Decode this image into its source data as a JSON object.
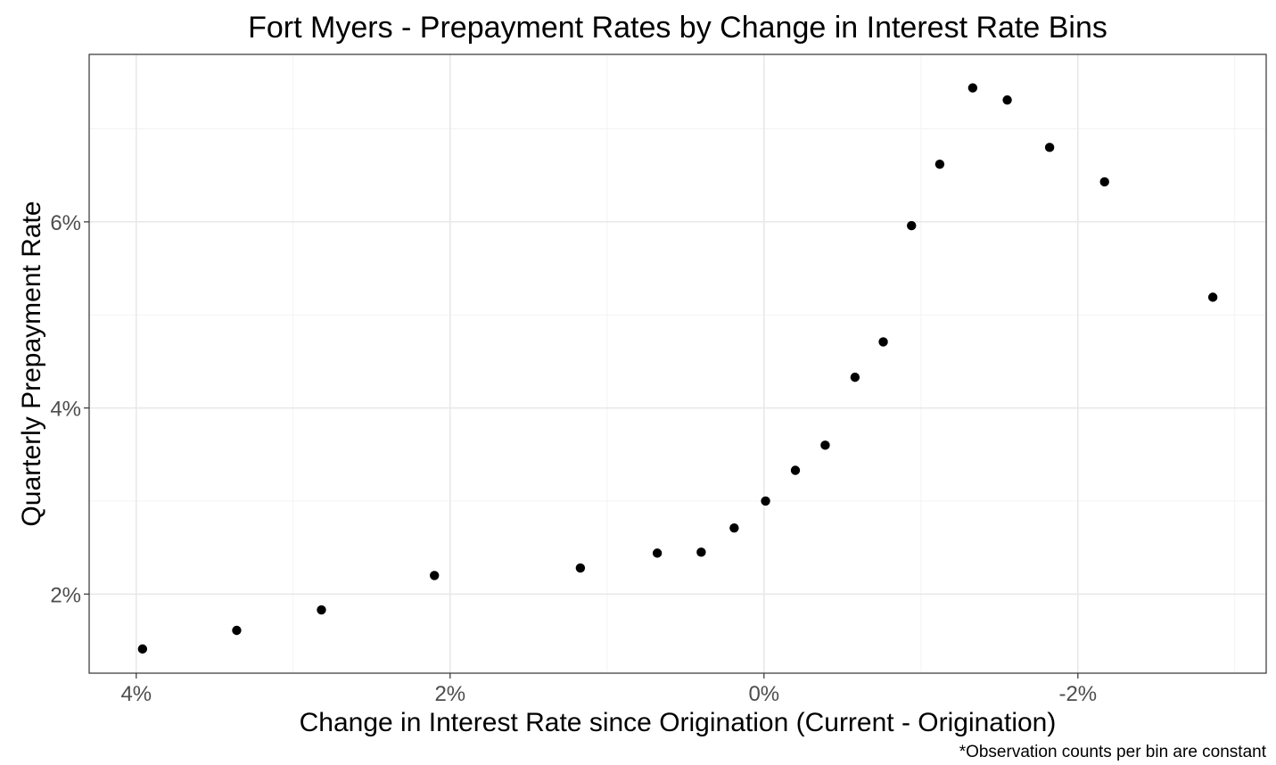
{
  "chart_data": {
    "type": "scatter",
    "title": "Fort Myers - Prepayment Rates by Change in Interest Rate Bins",
    "xlabel": "Change in Interest Rate since Origination (Current - Origination)",
    "ylabel": "Quarterly Prepayment Rate",
    "caption": "*Observation counts per bin are constant",
    "x_reversed": true,
    "xlim": [
      4.3,
      -3.2
    ],
    "ylim": [
      1.15,
      7.8
    ],
    "x_ticks": [
      4,
      2,
      0,
      -2
    ],
    "x_tick_labels": [
      "4%",
      "2%",
      "0%",
      "-2%"
    ],
    "y_ticks": [
      2,
      4,
      6
    ],
    "y_tick_labels": [
      "2%",
      "4%",
      "6%"
    ],
    "grid": true,
    "points": [
      {
        "x": 3.96,
        "y": 1.41
      },
      {
        "x": 3.36,
        "y": 1.61
      },
      {
        "x": 2.82,
        "y": 1.83
      },
      {
        "x": 2.1,
        "y": 2.2
      },
      {
        "x": 1.17,
        "y": 2.28
      },
      {
        "x": 0.68,
        "y": 2.44
      },
      {
        "x": 0.4,
        "y": 2.45
      },
      {
        "x": 0.19,
        "y": 2.71
      },
      {
        "x": -0.01,
        "y": 3.0
      },
      {
        "x": -0.2,
        "y": 3.33
      },
      {
        "x": -0.39,
        "y": 3.6
      },
      {
        "x": -0.58,
        "y": 4.33
      },
      {
        "x": -0.76,
        "y": 4.71
      },
      {
        "x": -0.94,
        "y": 5.96
      },
      {
        "x": -1.12,
        "y": 6.62
      },
      {
        "x": -1.33,
        "y": 7.44
      },
      {
        "x": -1.55,
        "y": 7.31
      },
      {
        "x": -1.82,
        "y": 6.8
      },
      {
        "x": -2.17,
        "y": 6.43
      },
      {
        "x": -2.86,
        "y": 5.19
      }
    ]
  }
}
